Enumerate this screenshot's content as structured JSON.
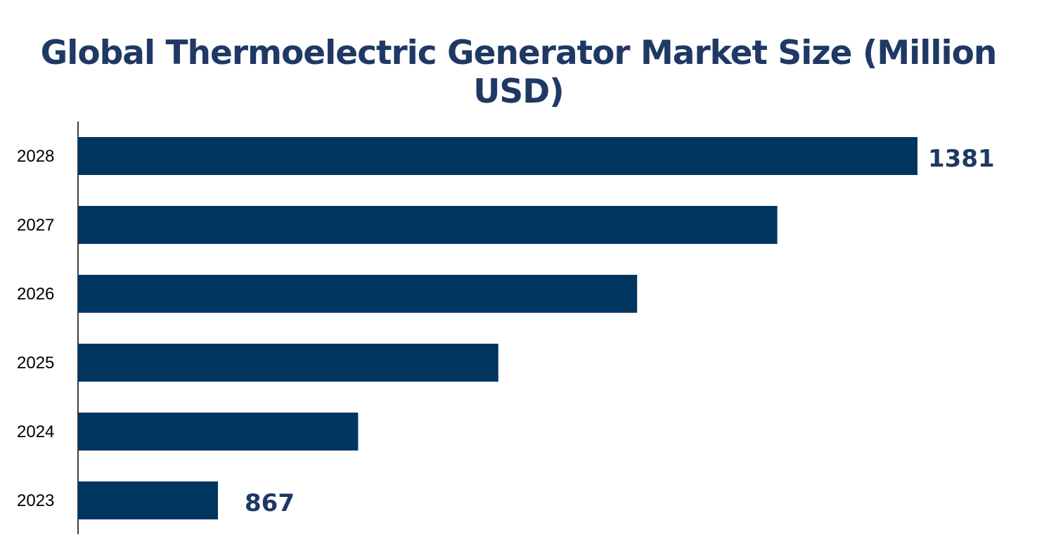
{
  "chart_data": {
    "type": "bar",
    "orientation": "horizontal",
    "title": "Global Thermoelectric Generator Market Size (Million USD)",
    "categories": [
      "2028",
      "2027",
      "2026",
      "2025",
      "2024",
      "2023"
    ],
    "values": [
      1381,
      1278,
      1175,
      1073,
      970,
      867
    ],
    "data_labels": {
      "2028": "1381",
      "2023": "867"
    },
    "xlim": [
      764.2,
      1381
    ],
    "xlabel": "",
    "ylabel": "",
    "grid": false,
    "legend": "none",
    "colors": {
      "bar": "#003560",
      "title": "#1f3864",
      "label": "#1f3864"
    }
  }
}
